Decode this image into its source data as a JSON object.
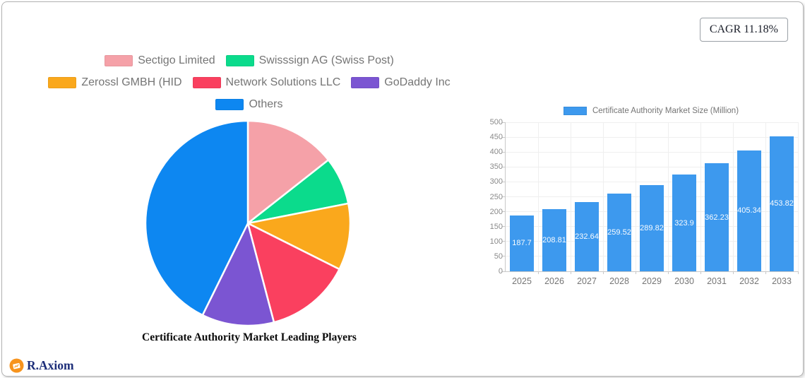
{
  "cagr_badge": "CAGR 11.18%",
  "brand": {
    "name": "R.Axiom",
    "circle_color": "#f7941e",
    "text_color": "#1d2e79"
  },
  "chart_data": [
    {
      "type": "pie",
      "title": "Certificate Authority Market Leading Players",
      "start_angle_deg_from_top": 0,
      "direction": "clockwise",
      "values_estimated_from_angles": true,
      "slices": [
        {
          "label": "Sectigo Limited",
          "value_pct": 14.4,
          "color": "#f5a1a8"
        },
        {
          "label": "Swisssign AG (Swiss Post)",
          "value_pct": 7.5,
          "color": "#0bdb8c"
        },
        {
          "label": "Zerossl GMBH (HID",
          "value_pct": 10.5,
          "color": "#faa81c"
        },
        {
          "label": "Network Solutions LLC",
          "value_pct": 13.5,
          "color": "#fa405f"
        },
        {
          "label": "GoDaddy Inc",
          "value_pct": 11.4,
          "color": "#7b55d2"
        },
        {
          "label": "Others",
          "value_pct": 42.7,
          "color": "#0d87f1"
        }
      ]
    },
    {
      "type": "bar",
      "legend": "Certificate Authority Market Size (Million)",
      "legend_position": "top",
      "categories": [
        "2025",
        "2026",
        "2027",
        "2028",
        "2029",
        "2030",
        "2031",
        "2032",
        "2033"
      ],
      "values": [
        187.7,
        208.81,
        232.64,
        259.52,
        289.82,
        323.9,
        362.23,
        405.34,
        453.82
      ],
      "value_labels": [
        "187.7",
        "208.81",
        "232.64",
        "259.52",
        "289.82",
        "323.9",
        "362.23",
        "405.34",
        "453.82"
      ],
      "bar_color": "#3d99ee",
      "ylim": [
        0,
        500
      ],
      "ytick_step": 50,
      "grid": true
    }
  ]
}
